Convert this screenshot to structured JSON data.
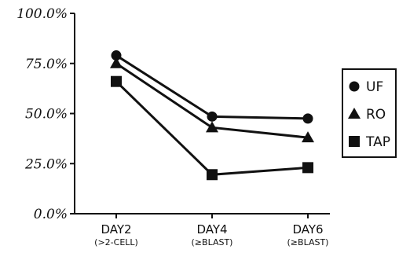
{
  "chart_data": {
    "type": "line",
    "categories": [
      {
        "label": "DAY2",
        "sublabel": "(>2-CELL)"
      },
      {
        "label": "DAY4",
        "sublabel": "(≥BLAST)"
      },
      {
        "label": "DAY6",
        "sublabel": "(≥BLAST)"
      }
    ],
    "y_ticks": [
      "0.0%",
      "25.0%",
      "50.0%",
      "75.0%",
      "100.0%"
    ],
    "ylim": [
      0,
      100
    ],
    "grid": false,
    "legend_position": "right",
    "series": [
      {
        "name": "UF",
        "marker": "circle",
        "values": [
          79,
          48.5,
          47.5
        ]
      },
      {
        "name": "RO",
        "marker": "triangle",
        "values": [
          75,
          43,
          38
        ]
      },
      {
        "name": "TAP",
        "marker": "square",
        "values": [
          66,
          19.5,
          23
        ]
      }
    ],
    "colors": {
      "ink": "#111111",
      "background": "#ffffff"
    }
  }
}
